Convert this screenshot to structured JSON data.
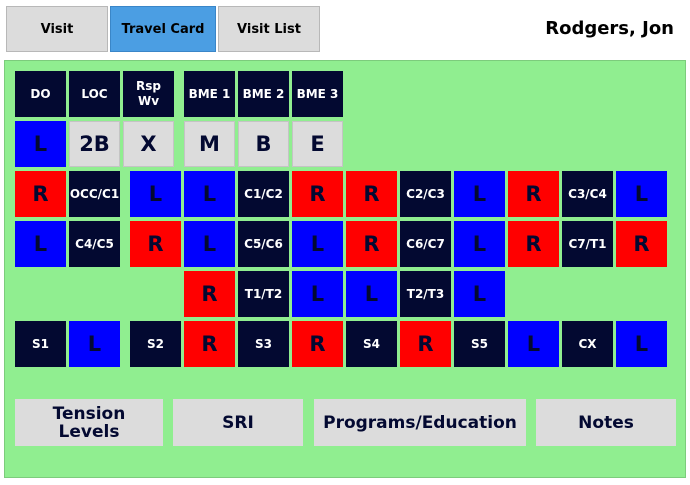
{
  "tabs": [
    {
      "label": "Visit",
      "active": false
    },
    {
      "label": "Travel Card",
      "active": true
    },
    {
      "label": "Visit List",
      "active": false
    }
  ],
  "patient_name": "Rodgers, Jon",
  "grid": {
    "row1": [
      "DO",
      "LOC",
      "Rsp\nWv",
      "BME 1",
      "BME 2",
      "BME 3"
    ],
    "row2": [
      "L",
      "2B",
      "X",
      "M",
      "B",
      "E"
    ],
    "row3": [
      "R",
      "OCC/C1",
      "L",
      "L",
      "C1/C2",
      "R",
      "R",
      "C2/C3",
      "L",
      "R",
      "C3/C4",
      "L"
    ],
    "row4": [
      "L",
      "C4/C5",
      "R",
      "L",
      "C5/C6",
      "L",
      "R",
      "C6/C7",
      "L",
      "R",
      "C7/T1",
      "R"
    ],
    "row5": [
      "R",
      "T1/T2",
      "L",
      "L",
      "T2/T3",
      "L"
    ],
    "row6": [
      "S1",
      "L",
      "S2",
      "R",
      "S3",
      "R",
      "S4",
      "R",
      "S5",
      "L",
      "CX",
      "L"
    ]
  },
  "buttons": {
    "tension": "Tension\nLevels",
    "sri": "SRI",
    "programs": "Programs/Education",
    "notes": "Notes"
  },
  "colors": {
    "dark": "#030931",
    "left": "#0000ff",
    "right": "#ff0000",
    "panel": "#90ee90",
    "active_tab": "#4b9ee3"
  }
}
